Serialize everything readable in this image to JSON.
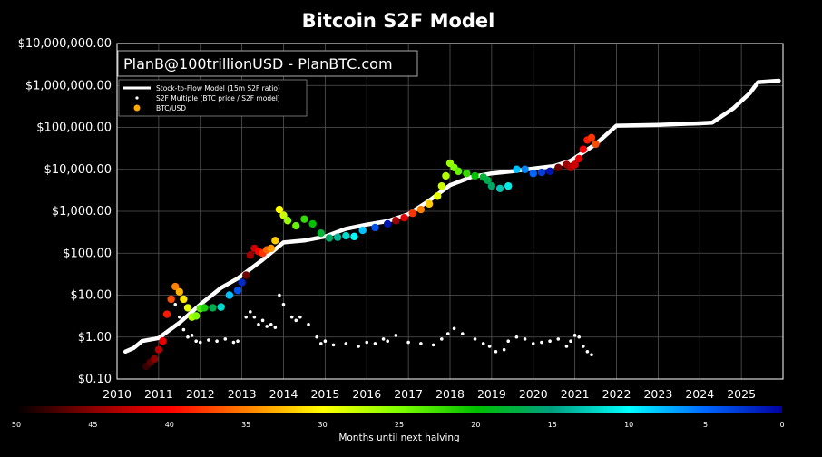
{
  "chart_data": {
    "type": "scatter",
    "title": "Bitcoin S2F Model",
    "watermark": "PlanB@100trillionUSD - PlanBTC.com",
    "xlabel": "",
    "ylabel": "",
    "xlim": [
      2010,
      2026
    ],
    "ylim": [
      0.1,
      10000000
    ],
    "yscale": "log",
    "grid": true,
    "x_ticks": [
      "2010",
      "2011",
      "2012",
      "2013",
      "2014",
      "2015",
      "2016",
      "2017",
      "2018",
      "2019",
      "2020",
      "2021",
      "2022",
      "2023",
      "2024",
      "2025"
    ],
    "y_ticks": [
      {
        "value": 0.1,
        "label": "$0.10"
      },
      {
        "value": 1,
        "label": "$1.00"
      },
      {
        "value": 10,
        "label": "$10.00"
      },
      {
        "value": 100,
        "label": "$100.00"
      },
      {
        "value": 1000,
        "label": "$1,000.00"
      },
      {
        "value": 10000,
        "label": "$10,000.00"
      },
      {
        "value": 100000,
        "label": "$100,000.00"
      },
      {
        "value": 1000000,
        "label": "$1,000,000.00"
      },
      {
        "value": 10000000,
        "label": "$10,000,000.00"
      }
    ],
    "legend": {
      "position": "top-left",
      "entries": [
        {
          "label": "Stock-to-Flow Model (15m S2F ratio)",
          "marker": "line",
          "color": "#ffffff"
        },
        {
          "label": "S2F Multiple (BTC price / S2F model)",
          "marker": "dot",
          "color": "#ffffff"
        },
        {
          "label": "BTC/USD",
          "marker": "circle",
          "color": "#ffaa00"
        }
      ]
    },
    "colorbar": {
      "label": "Months until next halving",
      "ticks": [
        "50",
        "45",
        "40",
        "35",
        "30",
        "25",
        "20",
        "15",
        "10",
        "5",
        "0"
      ],
      "range": [
        50,
        0
      ],
      "colors": [
        "#000000",
        "#8b0000",
        "#ff0000",
        "#ff7f00",
        "#ffff00",
        "#7fff00",
        "#00c000",
        "#00a080",
        "#00ffff",
        "#0066ff",
        "#0000a0"
      ]
    },
    "series": [
      {
        "name": "Stock-to-Flow Model (15m S2F ratio)",
        "style": "line",
        "color": "#ffffff",
        "x": [
          2010.2,
          2010.4,
          2010.6,
          2011.0,
          2011.5,
          2012.0,
          2012.5,
          2012.9,
          2013.5,
          2014.0,
          2014.5,
          2015.0,
          2015.5,
          2016.0,
          2016.5,
          2017.0,
          2017.5,
          2018.0,
          2018.5,
          2019.0,
          2019.5,
          2020.0,
          2020.5,
          2020.9,
          2021.5,
          2022.0,
          2023.0,
          2024.0,
          2024.3,
          2024.8,
          2025.2,
          2025.4,
          2025.9
        ],
        "y": [
          0.45,
          0.55,
          0.8,
          0.95,
          2.2,
          6,
          15,
          25,
          70,
          180,
          200,
          250,
          380,
          480,
          580,
          850,
          1800,
          4200,
          6500,
          8000,
          9000,
          10500,
          12000,
          16000,
          40000,
          110000,
          115000,
          125000,
          130000,
          280000,
          650000,
          1200000,
          1300000
        ]
      },
      {
        "name": "S2F Multiple (BTC price / S2F model)",
        "style": "dot",
        "color": "#ffffff",
        "x": [
          2011.4,
          2011.5,
          2011.6,
          2011.7,
          2011.8,
          2011.9,
          2012.0,
          2012.2,
          2012.4,
          2012.6,
          2012.8,
          2012.9,
          2013.1,
          2013.2,
          2013.3,
          2013.4,
          2013.5,
          2013.6,
          2013.7,
          2013.8,
          2013.9,
          2014.0,
          2014.2,
          2014.3,
          2014.4,
          2014.6,
          2014.8,
          2014.9,
          2015.0,
          2015.2,
          2015.5,
          2015.8,
          2016.0,
          2016.2,
          2016.4,
          2016.5,
          2016.7,
          2017.0,
          2017.3,
          2017.6,
          2017.8,
          2017.95,
          2018.1,
          2018.3,
          2018.6,
          2018.8,
          2018.95,
          2019.1,
          2019.3,
          2019.4,
          2019.6,
          2019.8,
          2020.0,
          2020.2,
          2020.4,
          2020.6,
          2020.8,
          2020.9,
          2021.0,
          2021.1,
          2021.2,
          2021.3,
          2021.4
        ],
        "y": [
          6,
          3,
          1.5,
          1,
          1.1,
          0.8,
          0.75,
          0.85,
          0.8,
          0.9,
          0.75,
          0.8,
          3,
          4,
          3,
          2,
          2.5,
          1.8,
          2,
          1.7,
          10,
          6,
          3,
          2.5,
          3,
          2,
          1,
          0.7,
          0.8,
          0.65,
          0.7,
          0.6,
          0.75,
          0.7,
          0.9,
          0.8,
          1.1,
          0.75,
          0.7,
          0.65,
          0.9,
          1.2,
          1.6,
          1.2,
          0.9,
          0.7,
          0.6,
          0.45,
          0.5,
          0.8,
          1,
          0.9,
          0.7,
          0.75,
          0.8,
          0.9,
          0.6,
          0.8,
          1.1,
          1,
          0.6,
          0.45,
          0.38
        ]
      },
      {
        "name": "BTC/USD",
        "style": "circle",
        "x": [
          2010.7,
          2010.8,
          2010.9,
          2011.0,
          2011.1,
          2011.2,
          2011.3,
          2011.4,
          2011.5,
          2011.6,
          2011.7,
          2011.8,
          2011.9,
          2012.0,
          2012.1,
          2012.3,
          2012.5,
          2012.7,
          2012.9,
          2013.0,
          2013.1,
          2013.2,
          2013.3,
          2013.4,
          2013.5,
          2013.6,
          2013.7,
          2013.8,
          2013.9,
          2014.0,
          2014.1,
          2014.3,
          2014.5,
          2014.7,
          2014.9,
          2015.1,
          2015.3,
          2015.5,
          2015.7,
          2015.9,
          2016.2,
          2016.5,
          2016.7,
          2016.9,
          2017.1,
          2017.3,
          2017.5,
          2017.7,
          2017.8,
          2017.9,
          2018.0,
          2018.1,
          2018.2,
          2018.4,
          2018.6,
          2018.8,
          2018.9,
          2019.0,
          2019.2,
          2019.4,
          2019.6,
          2019.8,
          2020.0,
          2020.2,
          2020.4,
          2020.6,
          2020.8,
          2020.9,
          2021.0,
          2021.1,
          2021.2,
          2021.3,
          2021.4,
          2021.5
        ],
        "y": [
          0.2,
          0.25,
          0.3,
          0.5,
          0.8,
          3.5,
          8,
          16,
          12,
          8,
          5,
          3,
          3.2,
          4.8,
          5,
          5,
          5.2,
          10,
          13,
          20,
          30,
          90,
          130,
          110,
          100,
          120,
          130,
          200,
          1100,
          800,
          600,
          450,
          650,
          500,
          300,
          230,
          240,
          260,
          250,
          350,
          410,
          500,
          600,
          700,
          900,
          1100,
          1500,
          2300,
          4000,
          7000,
          14000,
          11000,
          9000,
          8000,
          7000,
          6500,
          5500,
          4000,
          3500,
          4000,
          10000,
          10000,
          8000,
          8500,
          9000,
          11000,
          13000,
          11000,
          13000,
          18000,
          30000,
          50000,
          57000,
          40000
        ],
        "color_by": "months_until_next_halving",
        "months_until_next_halving": [
          48,
          47,
          45,
          43,
          41,
          39,
          37,
          35,
          33,
          31,
          29,
          27,
          25,
          23,
          21,
          17,
          12,
          8,
          4,
          2,
          46,
          44,
          42,
          40,
          38,
          36,
          34,
          32,
          30,
          28,
          26,
          24,
          22,
          20,
          18,
          16,
          14,
          12,
          10,
          8,
          4,
          1,
          44,
          41,
          38,
          35,
          32,
          29,
          28,
          27,
          26,
          25,
          24,
          22,
          20,
          18,
          17,
          16,
          13,
          11,
          8,
          6,
          5,
          3,
          1,
          46,
          44,
          43,
          42,
          41,
          40,
          39,
          38,
          37
        ]
      }
    ]
  }
}
